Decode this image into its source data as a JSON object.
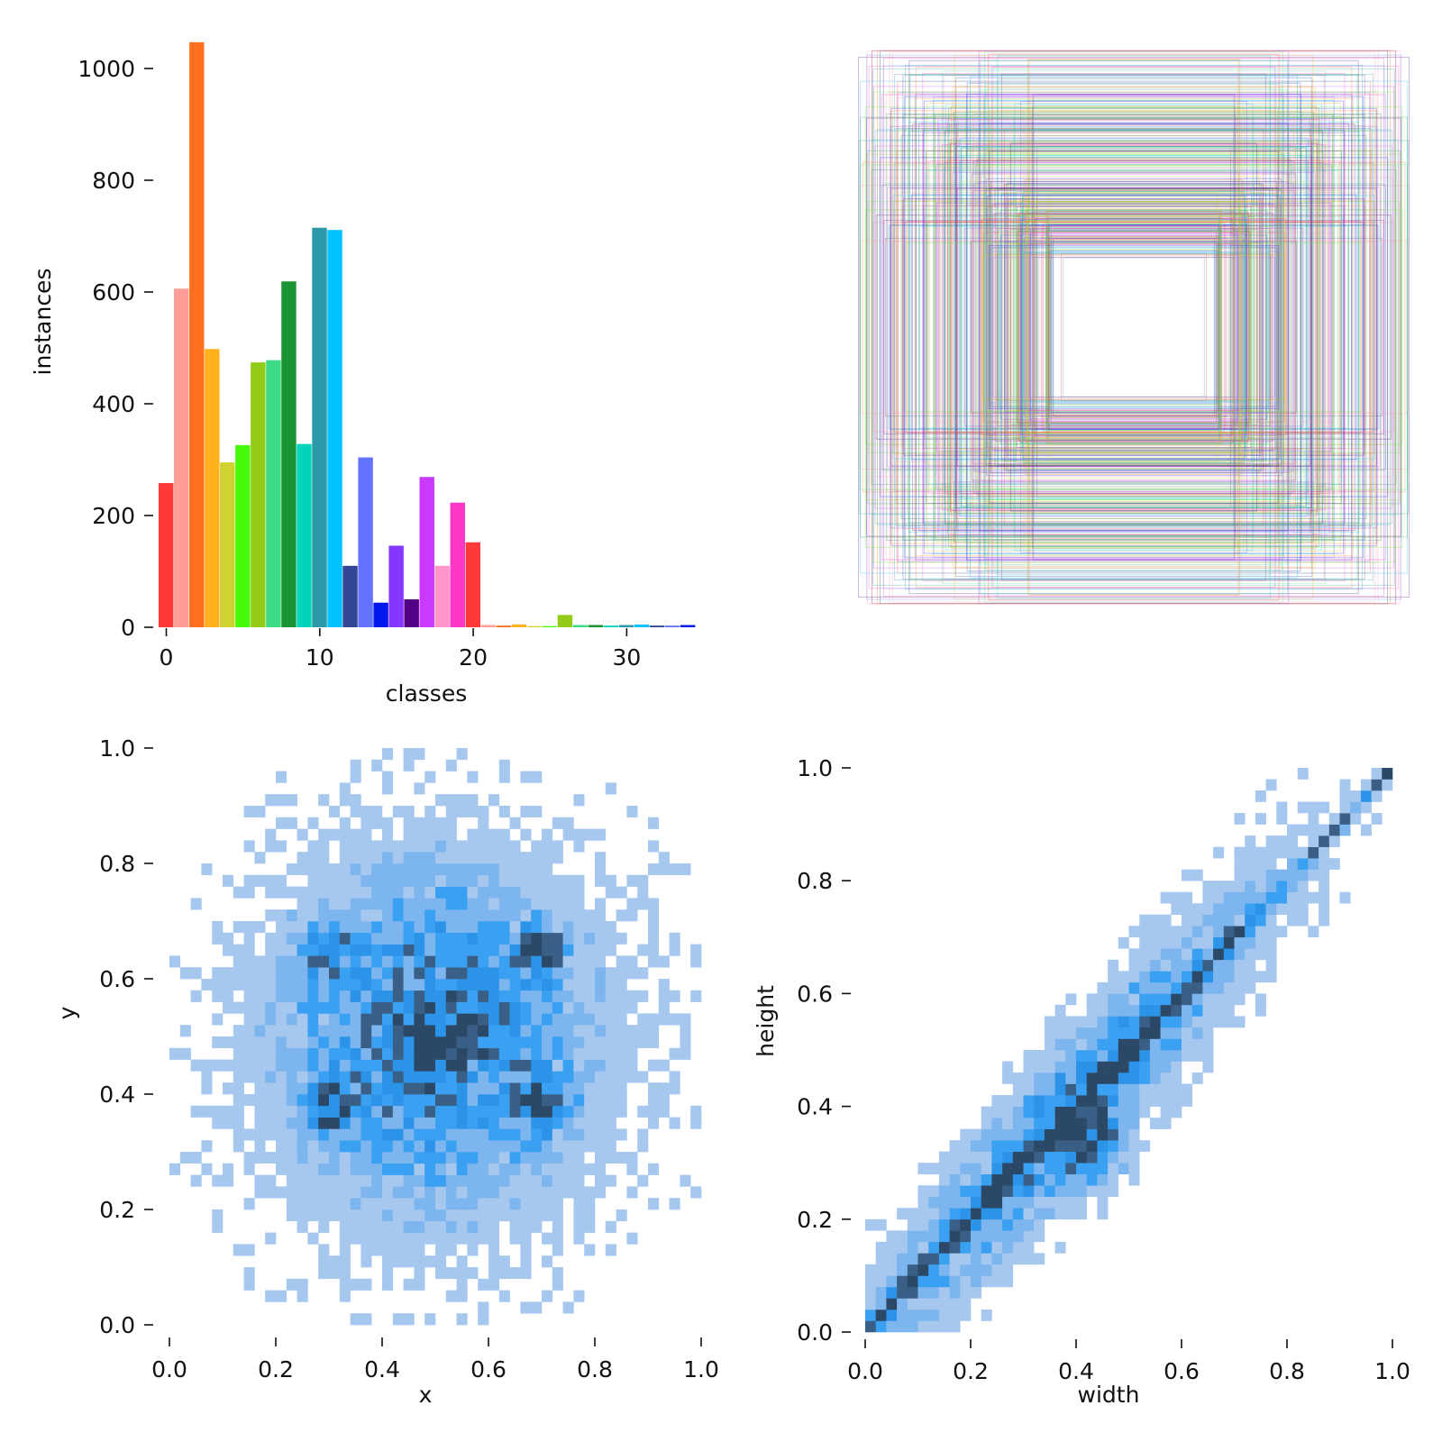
{
  "chart_data": [
    {
      "type": "bar",
      "xlabel": "classes",
      "ylabel": "instances",
      "xticks": [
        0,
        10,
        20,
        30
      ],
      "yticks": [
        0,
        200,
        400,
        600,
        800,
        1000
      ],
      "xlim": [
        -0.5,
        34.5
      ],
      "ylim": [
        0,
        1050
      ],
      "categories": [
        0,
        1,
        2,
        3,
        4,
        5,
        6,
        7,
        8,
        9,
        10,
        11,
        12,
        13,
        14,
        15,
        16,
        17,
        18,
        19,
        20,
        21,
        22,
        23,
        24,
        25,
        26,
        27,
        28,
        29,
        30,
        31,
        32,
        33,
        34
      ],
      "values": [
        258,
        606,
        1047,
        498,
        295,
        326,
        474,
        478,
        619,
        328,
        715,
        711,
        110,
        304,
        44,
        146,
        50,
        269,
        110,
        223,
        152,
        4,
        3,
        5,
        2,
        2,
        22,
        4,
        4,
        3,
        4,
        5,
        3,
        3,
        4
      ],
      "colors": [
        "#ff3838",
        "#ff9d97",
        "#ff701f",
        "#ffb21d",
        "#cfd231",
        "#48f90a",
        "#92cc17",
        "#3ddb86",
        "#1a9334",
        "#00d4bb",
        "#2c99a8",
        "#00c2ff",
        "#344593",
        "#6473ff",
        "#0018ec",
        "#8438ff",
        "#520085",
        "#cb38ff",
        "#ff95c8",
        "#ff37c7",
        "#ff3838",
        "#ff9d97",
        "#ff701f",
        "#ffb21d",
        "#cfd231",
        "#48f90a",
        "#92cc17",
        "#3ddb86",
        "#1a9334",
        "#00d4bb",
        "#2c99a8",
        "#00c2ff",
        "#344593",
        "#6473ff",
        "#0018ec"
      ]
    },
    {
      "type": "other",
      "description_kind": "overlaid bounding boxes centered in unit square",
      "box_count": 420,
      "colors": [
        "#ff3838",
        "#ff9d97",
        "#ff701f",
        "#ffb21d",
        "#cfd231",
        "#48f90a",
        "#92cc17",
        "#3ddb86",
        "#1a9334",
        "#00d4bb",
        "#2c99a8",
        "#00c2ff",
        "#344593",
        "#6473ff",
        "#0018ec",
        "#8438ff",
        "#520085",
        "#cb38ff",
        "#ff95c8",
        "#ff37c7"
      ]
    },
    {
      "type": "heatmap",
      "xlabel": "x",
      "ylabel": "y",
      "xlim": [
        0,
        1
      ],
      "ylim": [
        0,
        1
      ],
      "xticks": [
        "0.0",
        "0.2",
        "0.4",
        "0.6",
        "0.8",
        "1.0"
      ],
      "yticks": [
        "0.0",
        "0.2",
        "0.4",
        "0.6",
        "0.8",
        "1.0"
      ],
      "bins": 50,
      "hotspots": [
        [
          0.3,
          0.65
        ],
        [
          0.7,
          0.65
        ],
        [
          0.5,
          0.5
        ],
        [
          0.3,
          0.38
        ],
        [
          0.7,
          0.38
        ]
      ],
      "palette": [
        "#a6c8ef",
        "#7db5ef",
        "#3aa0f2",
        "#2b94e8",
        "#3a5f86",
        "#2b4866"
      ]
    },
    {
      "type": "heatmap",
      "xlabel": "width",
      "ylabel": "height",
      "xlim": [
        0,
        1
      ],
      "ylim": [
        0,
        1
      ],
      "xticks": [
        "0.0",
        "0.2",
        "0.4",
        "0.6",
        "0.8",
        "1.0"
      ],
      "yticks": [
        "0.0",
        "0.2",
        "0.4",
        "0.6",
        "0.8",
        "1.0"
      ],
      "bins": 50,
      "hotspots": [
        [
          0.43,
          0.33
        ],
        [
          0.99,
          0.99
        ]
      ],
      "palette": [
        "#a6c8ef",
        "#7db5ef",
        "#3aa0f2",
        "#2b94e8",
        "#3a5f86",
        "#2b4866"
      ]
    }
  ]
}
